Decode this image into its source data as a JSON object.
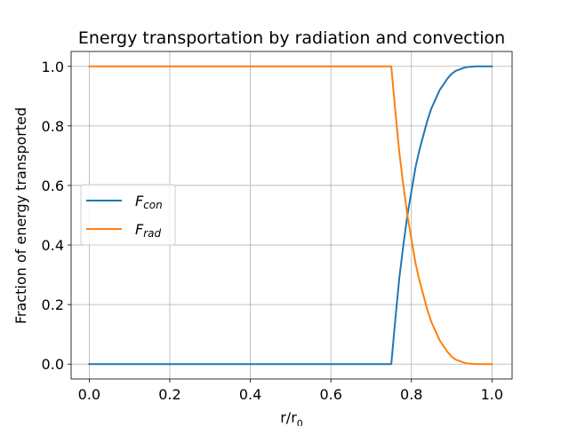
{
  "chart_data": {
    "type": "line",
    "title": "Energy transportation by radiation and convection",
    "xlabel": {
      "base": "r/r",
      "sub": "0"
    },
    "ylabel": "Fraction of energy transported",
    "xlim": [
      -0.045,
      1.05
    ],
    "ylim": [
      -0.05,
      1.05
    ],
    "xticks": [
      0.0,
      0.2,
      0.4,
      0.6,
      0.8,
      1.0
    ],
    "xtick_labels": [
      "0.0",
      "0.2",
      "0.4",
      "0.6",
      "0.8",
      "1.0"
    ],
    "yticks": [
      0.0,
      0.2,
      0.4,
      0.6,
      0.8,
      1.0
    ],
    "ytick_labels": [
      "0.0",
      "0.2",
      "0.4",
      "0.6",
      "0.8",
      "1.0"
    ],
    "grid": true,
    "legend_position": "center-left",
    "series": [
      {
        "name": "F",
        "name_sub": "con",
        "color": "#1f77b4",
        "x": [
          0.0,
          0.75,
          0.76,
          0.77,
          0.78,
          0.79,
          0.8,
          0.81,
          0.82,
          0.83,
          0.84,
          0.85,
          0.86,
          0.87,
          0.88,
          0.89,
          0.9,
          0.91,
          0.92,
          0.93,
          0.94,
          0.95,
          0.96,
          0.97,
          0.98,
          0.99,
          1.0
        ],
        "y": [
          0.0,
          0.0,
          0.15,
          0.29,
          0.4,
          0.5,
          0.58,
          0.66,
          0.72,
          0.77,
          0.82,
          0.86,
          0.89,
          0.92,
          0.94,
          0.96,
          0.975,
          0.985,
          0.99,
          0.995,
          0.998,
          0.999,
          1.0,
          1.0,
          1.0,
          1.0,
          1.0
        ]
      },
      {
        "name": "F",
        "name_sub": "rad",
        "color": "#ff7f0e",
        "x": [
          0.0,
          0.75,
          0.76,
          0.77,
          0.78,
          0.79,
          0.8,
          0.81,
          0.82,
          0.83,
          0.84,
          0.85,
          0.86,
          0.87,
          0.88,
          0.89,
          0.9,
          0.91,
          0.92,
          0.93,
          0.94,
          0.95,
          0.96,
          0.97,
          0.98,
          0.99,
          1.0
        ],
        "y": [
          1.0,
          1.0,
          0.85,
          0.71,
          0.6,
          0.5,
          0.42,
          0.34,
          0.28,
          0.23,
          0.18,
          0.14,
          0.11,
          0.08,
          0.06,
          0.04,
          0.025,
          0.015,
          0.01,
          0.005,
          0.002,
          0.001,
          0.0,
          0.0,
          0.0,
          0.0,
          0.0
        ]
      }
    ]
  }
}
